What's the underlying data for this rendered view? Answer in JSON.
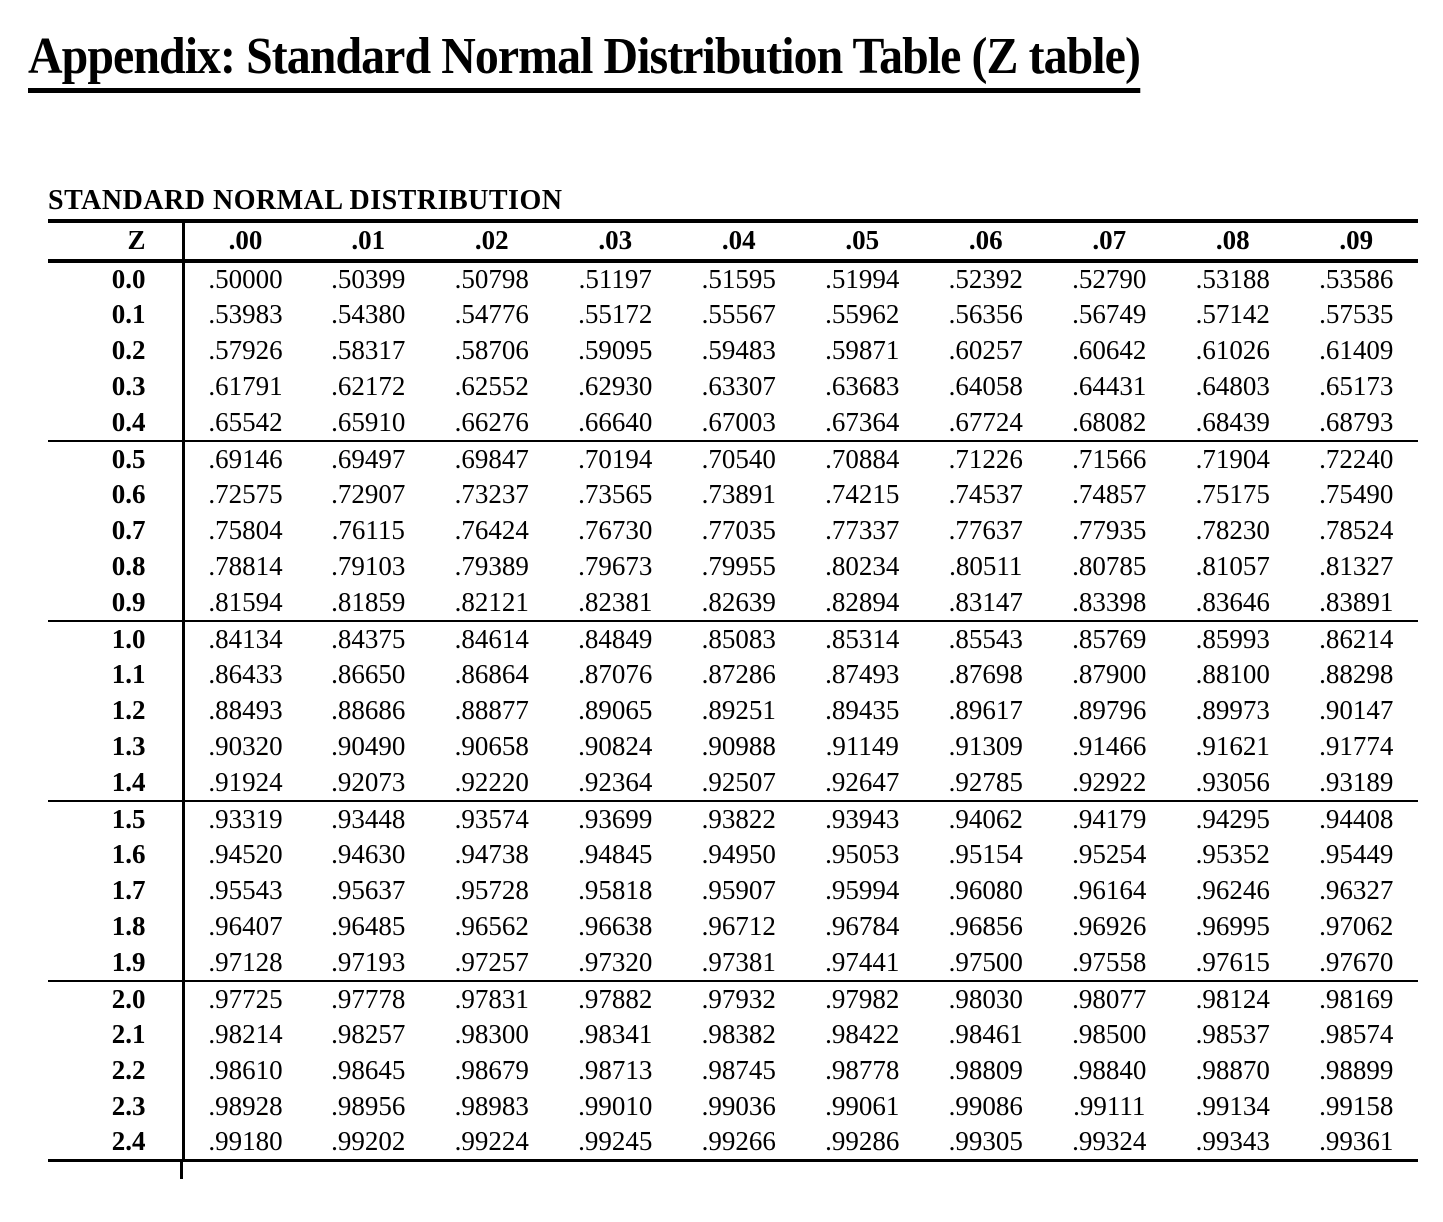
{
  "page": {
    "title": "Appendix: Standard Normal Distribution Table (Z table)"
  },
  "table": {
    "caption": "STANDARD NORMAL DISTRIBUTION",
    "corner_header": "Z",
    "column_headers": [
      ".00",
      ".01",
      ".02",
      ".03",
      ".04",
      ".05",
      ".06",
      ".07",
      ".08",
      ".09"
    ],
    "rows": [
      {
        "z": "0.0",
        "values": [
          ".50000",
          ".50399",
          ".50798",
          ".51197",
          ".51595",
          ".51994",
          ".52392",
          ".52790",
          ".53188",
          ".53586"
        ]
      },
      {
        "z": "0.1",
        "values": [
          ".53983",
          ".54380",
          ".54776",
          ".55172",
          ".55567",
          ".55962",
          ".56356",
          ".56749",
          ".57142",
          ".57535"
        ]
      },
      {
        "z": "0.2",
        "values": [
          ".57926",
          ".58317",
          ".58706",
          ".59095",
          ".59483",
          ".59871",
          ".60257",
          ".60642",
          ".61026",
          ".61409"
        ]
      },
      {
        "z": "0.3",
        "values": [
          ".61791",
          ".62172",
          ".62552",
          ".62930",
          ".63307",
          ".63683",
          ".64058",
          ".64431",
          ".64803",
          ".65173"
        ]
      },
      {
        "z": "0.4",
        "values": [
          ".65542",
          ".65910",
          ".66276",
          ".66640",
          ".67003",
          ".67364",
          ".67724",
          ".68082",
          ".68439",
          ".68793"
        ]
      },
      {
        "z": "0.5",
        "values": [
          ".69146",
          ".69497",
          ".69847",
          ".70194",
          ".70540",
          ".70884",
          ".71226",
          ".71566",
          ".71904",
          ".72240"
        ]
      },
      {
        "z": "0.6",
        "values": [
          ".72575",
          ".72907",
          ".73237",
          ".73565",
          ".73891",
          ".74215",
          ".74537",
          ".74857",
          ".75175",
          ".75490"
        ]
      },
      {
        "z": "0.7",
        "values": [
          ".75804",
          ".76115",
          ".76424",
          ".76730",
          ".77035",
          ".77337",
          ".77637",
          ".77935",
          ".78230",
          ".78524"
        ]
      },
      {
        "z": "0.8",
        "values": [
          ".78814",
          ".79103",
          ".79389",
          ".79673",
          ".79955",
          ".80234",
          ".80511",
          ".80785",
          ".81057",
          ".81327"
        ]
      },
      {
        "z": "0.9",
        "values": [
          ".81594",
          ".81859",
          ".82121",
          ".82381",
          ".82639",
          ".82894",
          ".83147",
          ".83398",
          ".83646",
          ".83891"
        ]
      },
      {
        "z": "1.0",
        "values": [
          ".84134",
          ".84375",
          ".84614",
          ".84849",
          ".85083",
          ".85314",
          ".85543",
          ".85769",
          ".85993",
          ".86214"
        ]
      },
      {
        "z": "1.1",
        "values": [
          ".86433",
          ".86650",
          ".86864",
          ".87076",
          ".87286",
          ".87493",
          ".87698",
          ".87900",
          ".88100",
          ".88298"
        ]
      },
      {
        "z": "1.2",
        "values": [
          ".88493",
          ".88686",
          ".88877",
          ".89065",
          ".89251",
          ".89435",
          ".89617",
          ".89796",
          ".89973",
          ".90147"
        ]
      },
      {
        "z": "1.3",
        "values": [
          ".90320",
          ".90490",
          ".90658",
          ".90824",
          ".90988",
          ".91149",
          ".91309",
          ".91466",
          ".91621",
          ".91774"
        ]
      },
      {
        "z": "1.4",
        "values": [
          ".91924",
          ".92073",
          ".92220",
          ".92364",
          ".92507",
          ".92647",
          ".92785",
          ".92922",
          ".93056",
          ".93189"
        ]
      },
      {
        "z": "1.5",
        "values": [
          ".93319",
          ".93448",
          ".93574",
          ".93699",
          ".93822",
          ".93943",
          ".94062",
          ".94179",
          ".94295",
          ".94408"
        ]
      },
      {
        "z": "1.6",
        "values": [
          ".94520",
          ".94630",
          ".94738",
          ".94845",
          ".94950",
          ".95053",
          ".95154",
          ".95254",
          ".95352",
          ".95449"
        ]
      },
      {
        "z": "1.7",
        "values": [
          ".95543",
          ".95637",
          ".95728",
          ".95818",
          ".95907",
          ".95994",
          ".96080",
          ".96164",
          ".96246",
          ".96327"
        ]
      },
      {
        "z": "1.8",
        "values": [
          ".96407",
          ".96485",
          ".96562",
          ".96638",
          ".96712",
          ".96784",
          ".96856",
          ".96926",
          ".96995",
          ".97062"
        ]
      },
      {
        "z": "1.9",
        "values": [
          ".97128",
          ".97193",
          ".97257",
          ".97320",
          ".97381",
          ".97441",
          ".97500",
          ".97558",
          ".97615",
          ".97670"
        ]
      },
      {
        "z": "2.0",
        "values": [
          ".97725",
          ".97778",
          ".97831",
          ".97882",
          ".97932",
          ".97982",
          ".98030",
          ".98077",
          ".98124",
          ".98169"
        ]
      },
      {
        "z": "2.1",
        "values": [
          ".98214",
          ".98257",
          ".98300",
          ".98341",
          ".98382",
          ".98422",
          ".98461",
          ".98500",
          ".98537",
          ".98574"
        ]
      },
      {
        "z": "2.2",
        "values": [
          ".98610",
          ".98645",
          ".98679",
          ".98713",
          ".98745",
          ".98778",
          ".98809",
          ".98840",
          ".98870",
          ".98899"
        ]
      },
      {
        "z": "2.3",
        "values": [
          ".98928",
          ".98956",
          ".98983",
          ".99010",
          ".99036",
          ".99061",
          ".99086",
          ".99111",
          ".99134",
          ".99158"
        ]
      },
      {
        "z": "2.4",
        "values": [
          ".99180",
          ".99202",
          ".99224",
          ".99245",
          ".99266",
          ".99286",
          ".99305",
          ".99324",
          ".99343",
          ".99361"
        ]
      }
    ],
    "colors": {
      "text": "#000000",
      "rule": "#000000",
      "background": "#ffffff"
    }
  }
}
